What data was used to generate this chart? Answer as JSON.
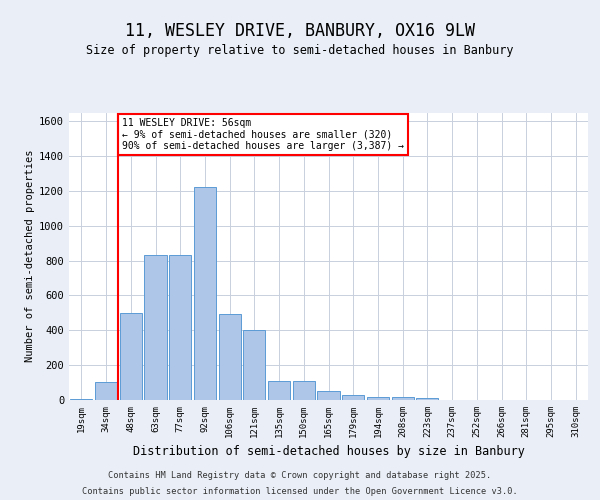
{
  "title": "11, WESLEY DRIVE, BANBURY, OX16 9LW",
  "subtitle": "Size of property relative to semi-detached houses in Banbury",
  "xlabel": "Distribution of semi-detached houses by size in Banbury",
  "ylabel": "Number of semi-detached properties",
  "bin_labels": [
    "19sqm",
    "34sqm",
    "48sqm",
    "63sqm",
    "77sqm",
    "92sqm",
    "106sqm",
    "121sqm",
    "135sqm",
    "150sqm",
    "165sqm",
    "179sqm",
    "194sqm",
    "208sqm",
    "223sqm",
    "237sqm",
    "252sqm",
    "266sqm",
    "281sqm",
    "295sqm",
    "310sqm"
  ],
  "bar_values": [
    5,
    105,
    500,
    830,
    830,
    1220,
    495,
    400,
    110,
    110,
    50,
    30,
    20,
    15,
    10,
    0,
    0,
    0,
    0,
    0,
    0
  ],
  "bar_color": "#aec6e8",
  "bar_edge_color": "#5b9bd5",
  "vline_color": "red",
  "vline_pos": 1.5,
  "annotation_text": "11 WESLEY DRIVE: 56sqm\n← 9% of semi-detached houses are smaller (320)\n90% of semi-detached houses are larger (3,387) →",
  "annotation_box_color": "white",
  "annotation_box_edge_color": "red",
  "ylim": [
    0,
    1650
  ],
  "yticks": [
    0,
    200,
    400,
    600,
    800,
    1000,
    1200,
    1400,
    1600
  ],
  "bg_color": "#eaeff7",
  "plot_bg_color": "white",
  "grid_color": "#c8d0de",
  "footer_line1": "Contains HM Land Registry data © Crown copyright and database right 2025.",
  "footer_line2": "Contains public sector information licensed under the Open Government Licence v3.0."
}
